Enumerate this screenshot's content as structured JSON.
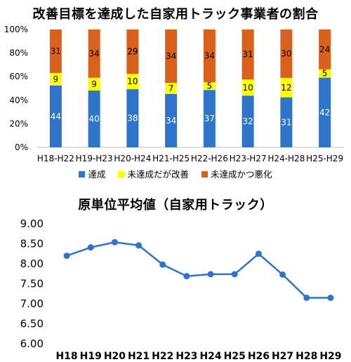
{
  "chart_data": [
    {
      "type": "bar",
      "stacked": true,
      "title": "改善目標を達成した自家用トラック事業者の割合",
      "categories": [
        "H18-H22",
        "H19-H23",
        "H20-H24",
        "H21-H25",
        "H22-H26",
        "H23-H27",
        "H24-H28",
        "H25-H29"
      ],
      "series": [
        {
          "name": "達成",
          "color": "#2E74C8",
          "values": [
            44,
            40,
            38,
            34,
            37,
            32,
            31,
            42
          ]
        },
        {
          "name": "未達成だが改善",
          "color": "#FFFF00",
          "values": [
            9,
            9,
            10,
            7,
            5,
            10,
            12,
            5
          ]
        },
        {
          "name": "未達成かつ悪化",
          "color": "#D9611B",
          "values": [
            31,
            34,
            29,
            34,
            34,
            31,
            30,
            24
          ]
        }
      ],
      "yticks": [
        "0%",
        "20%",
        "40%",
        "60%",
        "80%",
        "100%"
      ],
      "ylim": [
        0,
        100
      ],
      "legend_position": "bottom",
      "grid": false
    },
    {
      "type": "line",
      "title": "原単位平均値（自家用トラック）",
      "categories": [
        "H18",
        "H19",
        "H20",
        "H21",
        "H22",
        "H23",
        "H24",
        "H25",
        "H26",
        "H27",
        "H28",
        "H29"
      ],
      "series": [
        {
          "color": "#2E74C8",
          "values": [
            8.2,
            8.41,
            8.54,
            8.46,
            7.98,
            7.69,
            7.74,
            7.74,
            8.25,
            7.73,
            7.15,
            7.15
          ]
        }
      ],
      "yticks": [
        "6.00",
        "6.50",
        "7.00",
        "7.50",
        "8.00",
        "8.50",
        "9.00"
      ],
      "ylim": [
        6.0,
        9.0
      ],
      "grid": false
    }
  ]
}
